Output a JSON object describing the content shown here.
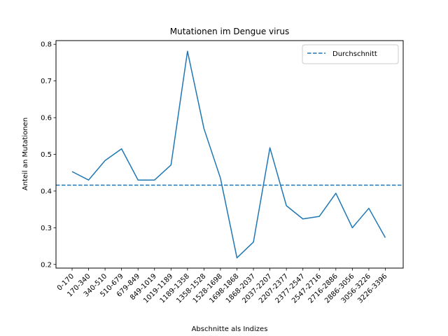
{
  "chart_data": {
    "type": "line",
    "title": "Mutationen im Dengue virus",
    "xlabel": "Abschnitte als Indizes",
    "ylabel": "Anteil an Mutationen",
    "categories": [
      "0-170",
      "170-340",
      "340-510",
      "510-679",
      "679-849",
      "849-1019",
      "1019-1189",
      "1189-1358",
      "1358-1528",
      "1528-1698",
      "1698-1868",
      "1868-2037",
      "2037-2207",
      "2207-2377",
      "2377-2547",
      "2547-2716",
      "2716-2886",
      "2886-3056",
      "3056-3226",
      "3226-3396"
    ],
    "series": [
      {
        "values": [
          0.453,
          0.43,
          0.483,
          0.515,
          0.43,
          0.43,
          0.471,
          0.781,
          0.57,
          0.435,
          0.218,
          0.261,
          0.518,
          0.36,
          0.324,
          0.331,
          0.394,
          0.3,
          0.353,
          0.273
        ],
        "color": "#1f77b4"
      }
    ],
    "reference_line": {
      "name": "Durchschnitt",
      "value": 0.416,
      "style": "dashed",
      "color": "#1f77b4"
    },
    "yticks": [
      0.2,
      0.3,
      0.4,
      0.5,
      0.6,
      0.7,
      0.8
    ],
    "ylim": [
      0.19,
      0.81
    ],
    "grid": false,
    "legend_position": "top-right"
  }
}
